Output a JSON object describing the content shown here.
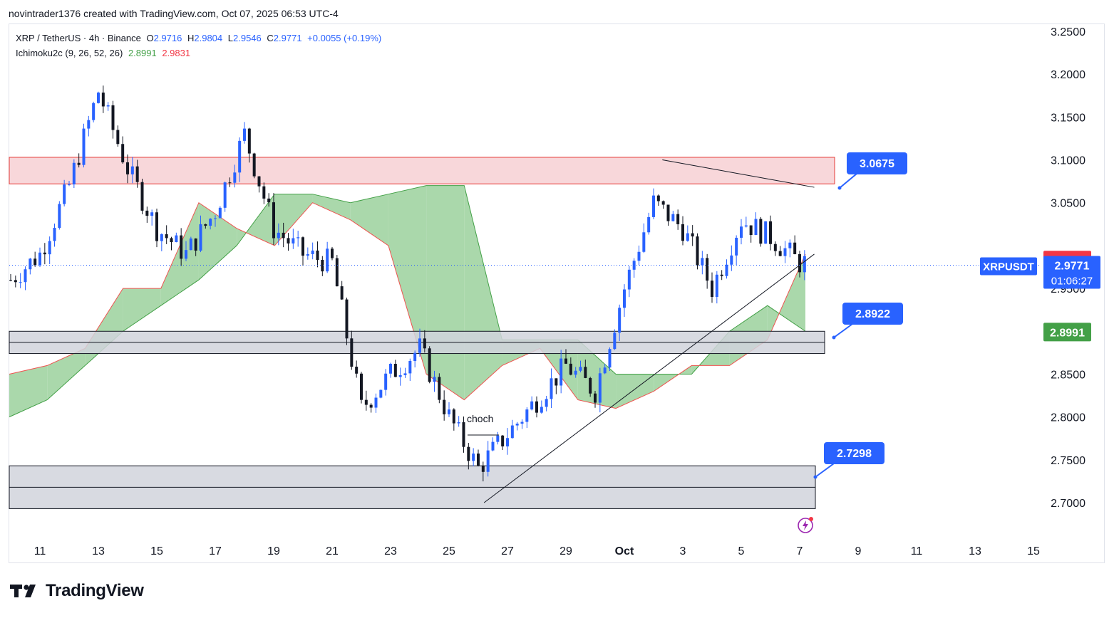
{
  "caption": "novintrader1376 created with TradingView.com, Oct 07, 2025 06:53 UTC-4",
  "legend": {
    "symbol": "XRP / TetherUS · 4h · Binance",
    "open_label": "O",
    "open": "2.9716",
    "high_label": "H",
    "high": "2.9804",
    "low_label": "L",
    "low": "2.9546",
    "close_label": "C",
    "close": "2.9771",
    "change": "+0.0055 (+0.19%)",
    "indicator": "Ichimoku2c (9, 26, 52, 26)",
    "ind_val1": "2.8991",
    "ind_val2": "2.9831"
  },
  "price_axis": {
    "ticks": [
      "3.2500",
      "3.2000",
      "3.1500",
      "3.1000",
      "3.0500",
      "2.9500",
      "2.8500",
      "2.8000",
      "2.7500",
      "2.7000"
    ]
  },
  "badges": {
    "symbol": "XRPUSDT",
    "last_price": "2.9771",
    "countdown": "01:06:27",
    "red_value": "2.9831",
    "green_value": "2.8991"
  },
  "callouts": [
    {
      "label": "3.0675",
      "value": 3.0675
    },
    {
      "label": "2.8922",
      "value": 2.8922
    },
    {
      "label": "2.7298",
      "value": 2.7298
    }
  ],
  "annotation": "choch",
  "brand": "TradingView",
  "colors": {
    "up": "#2962ff",
    "down": "#131722",
    "cloud_fill": "#a5d6a7",
    "cloud_edge_up": "#43a047",
    "cloud_edge_down": "#ef5350",
    "resistance_fill": "#f8d7da",
    "resistance_edge": "#e53935",
    "support_fill": "#d1d4dc",
    "support_edge": "#131722",
    "badge_blue": "#2962ff",
    "badge_red": "#f23645",
    "badge_green": "#43a047"
  },
  "chart_data": {
    "type": "candlestick",
    "symbol": "XRP / TetherUS",
    "timeframe": "4h",
    "y_range": [
      2.68,
      3.27
    ],
    "x_axis_labels": [
      "11",
      "13",
      "15",
      "17",
      "19",
      "21",
      "23",
      "25",
      "27",
      "29",
      "Oct",
      "3",
      "5",
      "7",
      "9",
      "11",
      "13",
      "15"
    ],
    "zones": [
      {
        "kind": "resistance",
        "top": 3.103,
        "bottom": 3.072
      },
      {
        "kind": "support",
        "top": 2.9,
        "bottom": 2.874,
        "midline": 2.887
      },
      {
        "kind": "support",
        "top": 2.743,
        "bottom": 2.693,
        "midline": 2.718
      }
    ],
    "trendlines": [
      {
        "from": [
          "Sep 26",
          2.7
        ],
        "to": [
          "Oct 7",
          2.99
        ]
      },
      {
        "from": [
          "Oct 2",
          3.1
        ],
        "to": [
          "Oct 7",
          3.068
        ]
      }
    ],
    "price_path": [
      {
        "date": "Sep 10",
        "price": 2.96
      },
      {
        "date": "Sep 11",
        "price": 2.99
      },
      {
        "date": "Sep 12",
        "price": 3.07
      },
      {
        "date": "Sep 13",
        "price": 3.18
      },
      {
        "date": "Sep 14",
        "price": 3.09
      },
      {
        "date": "Sep 15",
        "price": 3.02
      },
      {
        "date": "Sep 16",
        "price": 2.99
      },
      {
        "date": "Sep 17",
        "price": 3.04
      },
      {
        "date": "Sep 18",
        "price": 3.13
      },
      {
        "date": "Sep 19",
        "price": 3.02
      },
      {
        "date": "Sep 20",
        "price": 2.99
      },
      {
        "date": "Sep 21",
        "price": 2.98
      },
      {
        "date": "Sep 22",
        "price": 2.81
      },
      {
        "date": "Sep 23",
        "price": 2.85
      },
      {
        "date": "Sep 24",
        "price": 2.88
      },
      {
        "date": "Sep 25",
        "price": 2.8
      },
      {
        "date": "Sep 26",
        "price": 2.74
      },
      {
        "date": "Sep 27",
        "price": 2.78
      },
      {
        "date": "Sep 28",
        "price": 2.82
      },
      {
        "date": "Sep 29",
        "price": 2.86
      },
      {
        "date": "Sep 30",
        "price": 2.83
      },
      {
        "date": "Oct 1",
        "price": 2.95
      },
      {
        "date": "Oct 2",
        "price": 3.05
      },
      {
        "date": "Oct 3",
        "price": 3.02
      },
      {
        "date": "Oct 4",
        "price": 2.95
      },
      {
        "date": "Oct 5",
        "price": 3.03
      },
      {
        "date": "Oct 6",
        "price": 3.01
      },
      {
        "date": "Oct 7",
        "price": 2.98
      }
    ],
    "ichimoku_cloud": {
      "span_a": [
        2.8,
        2.82,
        2.86,
        2.9,
        2.93,
        2.96,
        3.0,
        3.06,
        3.06,
        3.05,
        3.06,
        3.07,
        3.07,
        2.89,
        2.89,
        2.89,
        2.85,
        2.85,
        2.85,
        2.9,
        2.93,
        2.9
      ],
      "span_b": [
        2.85,
        2.86,
        2.88,
        2.95,
        2.95,
        3.05,
        3.02,
        3.0,
        3.05,
        3.03,
        3.0,
        2.85,
        2.82,
        2.86,
        2.88,
        2.82,
        2.81,
        2.83,
        2.86,
        2.86,
        2.89,
        2.99
      ]
    }
  }
}
